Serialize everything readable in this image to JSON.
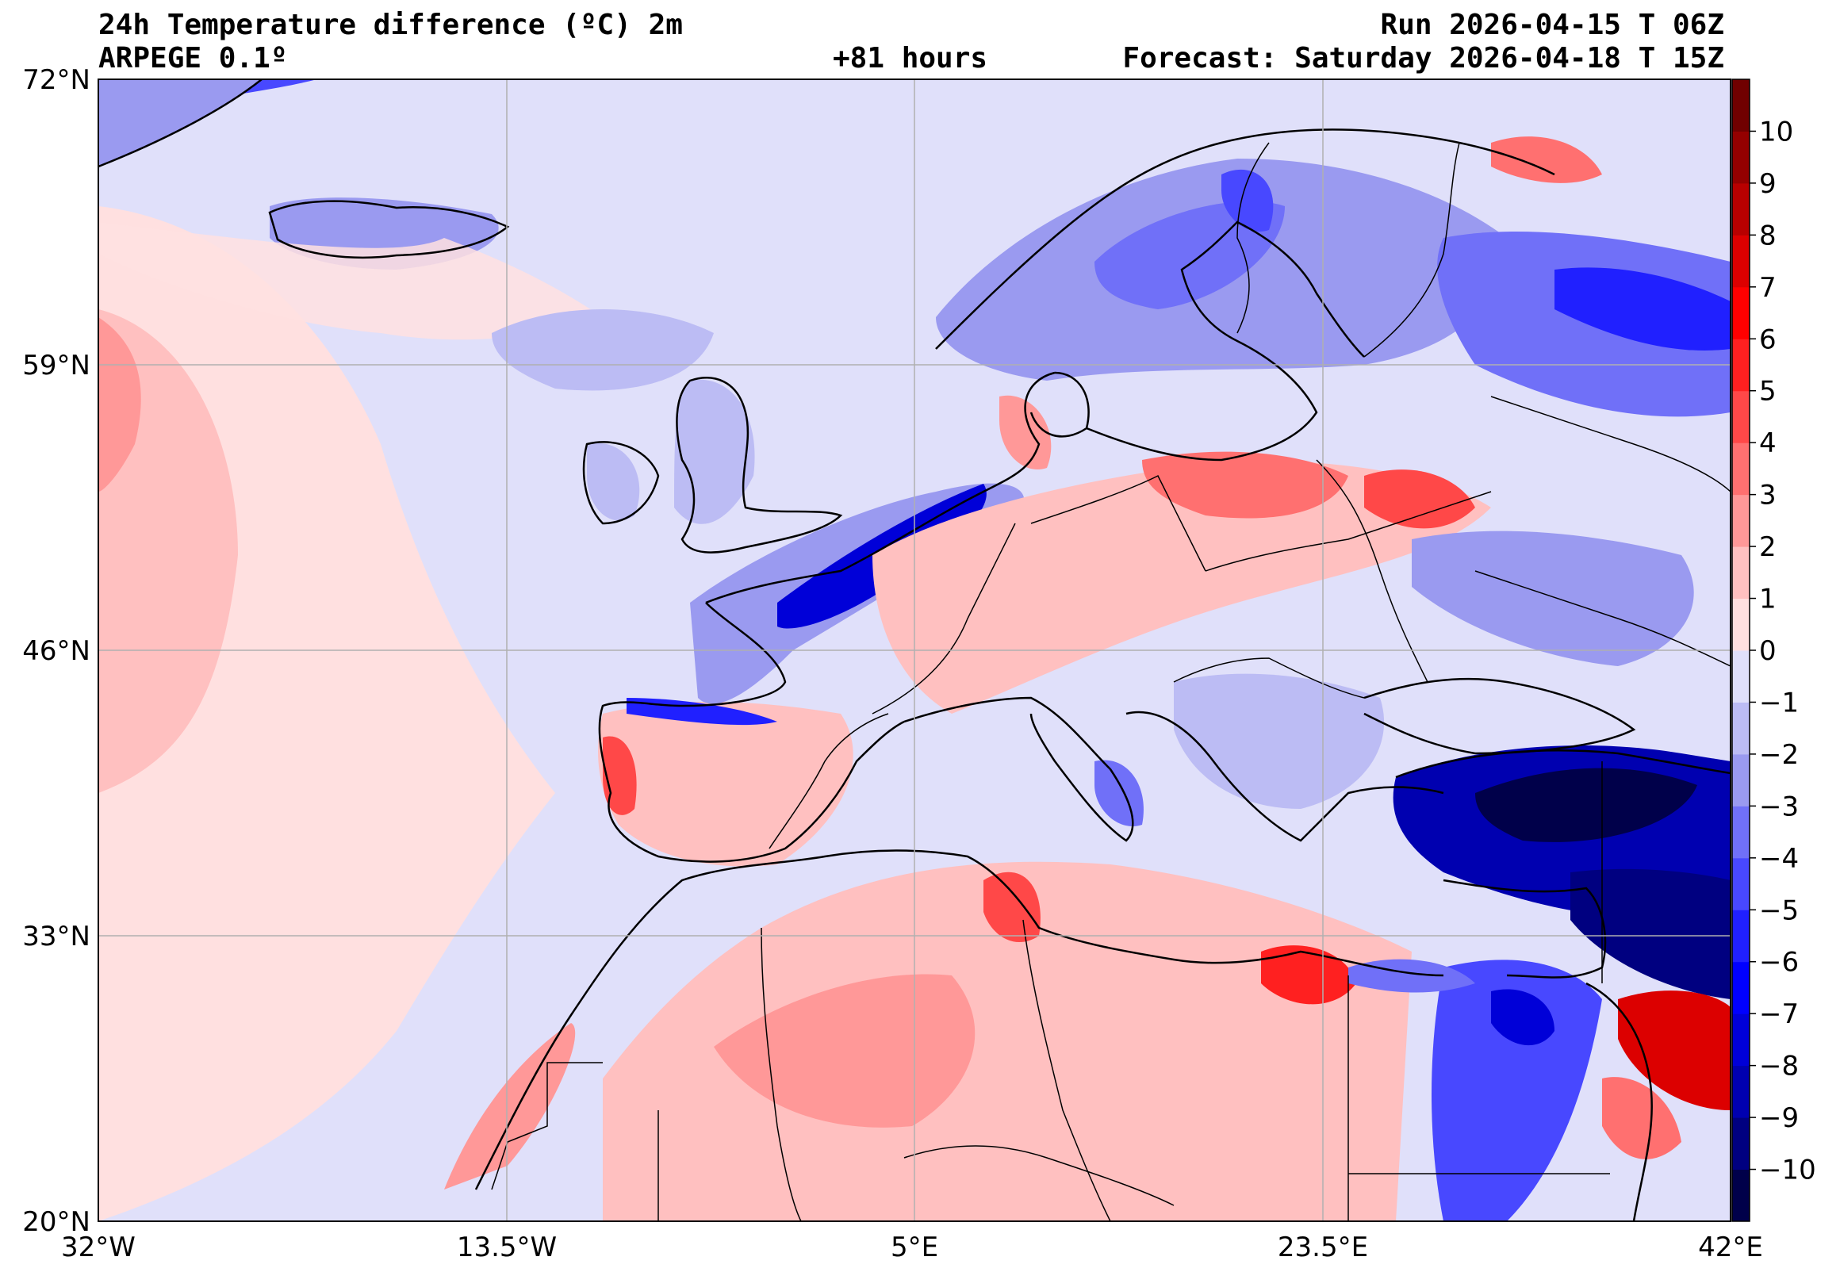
{
  "header": {
    "title_left": "24h Temperature difference (ºC) 2m",
    "model": "ARPEGE 0.1º",
    "lead_time": "+81 hours",
    "run": "Run 2026-04-15 T 06Z",
    "forecast": "Forecast: Saturday 2026-04-18 T 15Z"
  },
  "map": {
    "lat_labels": [
      "72°N",
      "59°N",
      "46°N",
      "33°N",
      "20°N"
    ],
    "lon_labels": [
      "32°W",
      "13.5°W",
      "5°E",
      "23.5°E",
      "42°E"
    ]
  },
  "colorbar": {
    "levels": [
      -11,
      -10,
      -9,
      -8,
      -7,
      -6,
      -5,
      -4,
      -3,
      -2,
      -1,
      0,
      1,
      2,
      3,
      4,
      5,
      6,
      7,
      8,
      9,
      10,
      11
    ],
    "colors": [
      "#00004a",
      "#000080",
      "#0000b0",
      "#0000d8",
      "#0000ff",
      "#2020ff",
      "#4848ff",
      "#7070f8",
      "#9a9af0",
      "#bcbcf4",
      "#e0e0fa",
      "#ffe0e0",
      "#ffc0c0",
      "#ff9898",
      "#ff7070",
      "#ff4848",
      "#ff2020",
      "#ff0000",
      "#dc0000",
      "#b80000",
      "#940000",
      "#700000"
    ],
    "tick_labels": [
      "−10",
      "−9",
      "−8",
      "−7",
      "−6",
      "−5",
      "−4",
      "−3",
      "−2",
      "−1",
      "0",
      "1",
      "2",
      "3",
      "4",
      "5",
      "6",
      "7",
      "8",
      "9",
      "10"
    ]
  },
  "colors": {
    "light_blue": "#e0e0fa",
    "light_red": "#ffe0e0",
    "pink": "#ffc0c0",
    "salmon": "#ff9898",
    "red": "#ff4848",
    "blue_mid": "#9a9af0",
    "blue": "#4848ff",
    "navy": "#000080"
  }
}
